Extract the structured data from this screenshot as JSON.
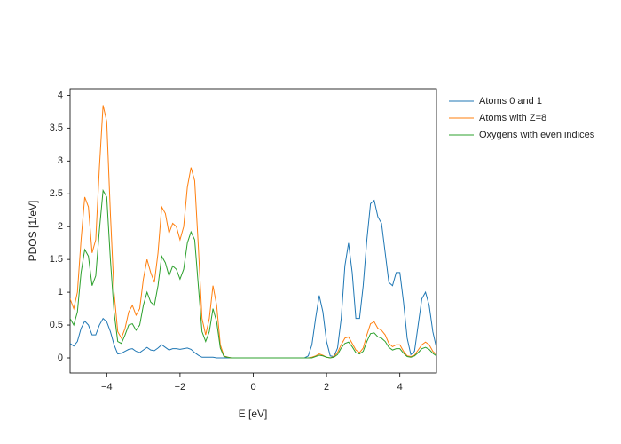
{
  "chart_data": {
    "type": "line",
    "xlabel": "E [eV]",
    "ylabel": "PDOS [1/eV]",
    "xlim": [
      -5,
      5
    ],
    "ylim": [
      -0.23,
      4.1
    ],
    "xticks": [
      {
        "value": -4,
        "label": "−4"
      },
      {
        "value": -2,
        "label": "−2"
      },
      0,
      2,
      4
    ],
    "yticks": [
      0,
      0.5,
      1,
      1.5,
      2,
      2.5,
      3,
      3.5,
      4
    ],
    "legend": "outside-right",
    "x": [
      -5,
      -4.9,
      -4.8,
      -4.7,
      -4.6,
      -4.5,
      -4.4,
      -4.3,
      -4.2,
      -4.1,
      -4,
      -3.9,
      -3.8,
      -3.7,
      -3.6,
      -3.5,
      -3.4,
      -3.3,
      -3.2,
      -3.1,
      -3,
      -2.9,
      -2.8,
      -2.7,
      -2.6,
      -2.5,
      -2.4,
      -2.3,
      -2.2,
      -2.1,
      -2,
      -1.9,
      -1.8,
      -1.7,
      -1.6,
      -1.5,
      -1.4,
      -1.3,
      -1.2,
      -1.1,
      -1,
      -0.9,
      -0.8,
      -0.7,
      -0.6,
      -0.5,
      -0.4,
      -0.3,
      -0.2,
      -0.1,
      0,
      0.1,
      0.2,
      0.3,
      0.4,
      0.5,
      0.6,
      0.7,
      0.8,
      0.9,
      1,
      1.1,
      1.2,
      1.3,
      1.4,
      1.5,
      1.6,
      1.7,
      1.8,
      1.9,
      2,
      2.1,
      2.2,
      2.3,
      2.4,
      2.5,
      2.6,
      2.7,
      2.8,
      2.9,
      3,
      3.1,
      3.2,
      3.3,
      3.4,
      3.5,
      3.6,
      3.7,
      3.8,
      3.9,
      4,
      4.1,
      4.2,
      4.3,
      4.4,
      4.5,
      4.6,
      4.7,
      4.8,
      4.9,
      5
    ],
    "series": [
      {
        "name": "Atoms 0 and 1",
        "color": "#1f77b4",
        "values": [
          0.22,
          0.18,
          0.25,
          0.45,
          0.56,
          0.5,
          0.35,
          0.35,
          0.5,
          0.6,
          0.55,
          0.4,
          0.2,
          0.06,
          0.07,
          0.1,
          0.13,
          0.14,
          0.1,
          0.08,
          0.12,
          0.16,
          0.12,
          0.11,
          0.15,
          0.2,
          0.16,
          0.12,
          0.14,
          0.14,
          0.13,
          0.14,
          0.15,
          0.13,
          0.08,
          0.04,
          0.01,
          0.01,
          0.01,
          0.01,
          0,
          0,
          0,
          0,
          0,
          0,
          0,
          0,
          0,
          0,
          0,
          0,
          0,
          0,
          0,
          0,
          0,
          0,
          0,
          0,
          0,
          0,
          0,
          0,
          0,
          0.03,
          0.2,
          0.6,
          0.95,
          0.7,
          0.25,
          0.03,
          0.02,
          0.15,
          0.6,
          1.4,
          1.75,
          1.3,
          0.6,
          0.6,
          1.1,
          1.8,
          2.35,
          2.4,
          2.15,
          2.05,
          1.6,
          1.15,
          1.1,
          1.3,
          1.3,
          0.85,
          0.3,
          0.05,
          0.1,
          0.5,
          0.9,
          1.0,
          0.8,
          0.4,
          0.15
        ]
      },
      {
        "name": "Atoms with Z=8",
        "color": "#ff7f0e",
        "values": [
          0.9,
          0.75,
          1.0,
          1.8,
          2.45,
          2.3,
          1.6,
          1.8,
          2.9,
          3.85,
          3.6,
          2.2,
          1.0,
          0.4,
          0.3,
          0.45,
          0.7,
          0.8,
          0.65,
          0.75,
          1.2,
          1.5,
          1.3,
          1.15,
          1.6,
          2.3,
          2.2,
          1.9,
          2.05,
          2.0,
          1.8,
          2.0,
          2.6,
          2.9,
          2.7,
          1.7,
          0.6,
          0.35,
          0.6,
          1.1,
          0.8,
          0.2,
          0.03,
          0.01,
          0,
          0,
          0,
          0,
          0,
          0,
          0,
          0,
          0,
          0,
          0,
          0,
          0,
          0,
          0,
          0,
          0,
          0,
          0,
          0,
          0,
          0,
          0.01,
          0.03,
          0.06,
          0.04,
          0.01,
          0,
          0.02,
          0.08,
          0.2,
          0.3,
          0.32,
          0.22,
          0.12,
          0.08,
          0.15,
          0.35,
          0.52,
          0.55,
          0.45,
          0.42,
          0.35,
          0.22,
          0.17,
          0.2,
          0.2,
          0.1,
          0.03,
          0.02,
          0.04,
          0.12,
          0.2,
          0.24,
          0.2,
          0.1,
          0.05
        ]
      },
      {
        "name": "Oxygens with even indices",
        "color": "#2ca02c",
        "values": [
          0.6,
          0.5,
          0.7,
          1.3,
          1.65,
          1.55,
          1.1,
          1.25,
          1.95,
          2.55,
          2.45,
          1.5,
          0.7,
          0.25,
          0.22,
          0.35,
          0.5,
          0.52,
          0.42,
          0.5,
          0.8,
          1.0,
          0.85,
          0.8,
          1.1,
          1.55,
          1.45,
          1.25,
          1.4,
          1.35,
          1.2,
          1.35,
          1.75,
          1.92,
          1.8,
          1.1,
          0.4,
          0.25,
          0.4,
          0.75,
          0.55,
          0.15,
          0.02,
          0.01,
          0,
          0,
          0,
          0,
          0,
          0,
          0,
          0,
          0,
          0,
          0,
          0,
          0,
          0,
          0,
          0,
          0,
          0,
          0,
          0,
          0,
          0,
          0,
          0.02,
          0.04,
          0.03,
          0.01,
          0,
          0.01,
          0.05,
          0.15,
          0.22,
          0.24,
          0.17,
          0.08,
          0.06,
          0.1,
          0.25,
          0.37,
          0.38,
          0.32,
          0.3,
          0.25,
          0.16,
          0.12,
          0.14,
          0.14,
          0.07,
          0.02,
          0.01,
          0.03,
          0.08,
          0.14,
          0.16,
          0.13,
          0.07,
          0.03
        ]
      }
    ]
  }
}
